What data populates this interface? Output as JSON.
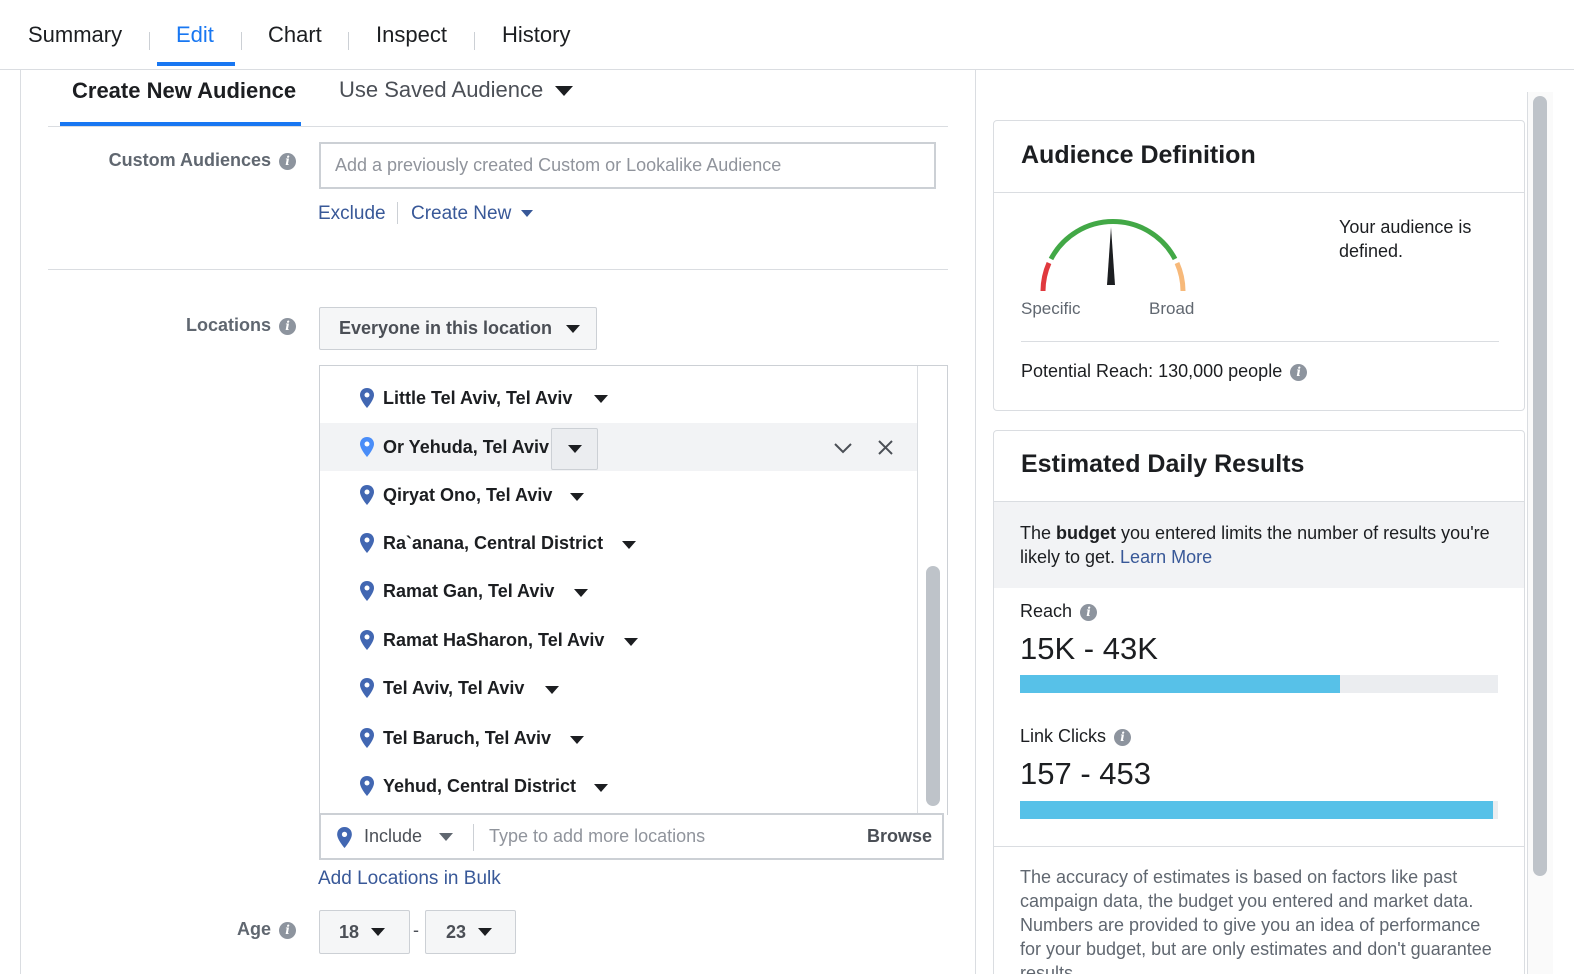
{
  "top_tabs": [
    {
      "label": "Summary",
      "active": false
    },
    {
      "label": "Edit",
      "active": true
    },
    {
      "label": "Chart",
      "active": false
    },
    {
      "label": "Inspect",
      "active": false
    },
    {
      "label": "History",
      "active": false
    }
  ],
  "audience_tabs": {
    "create": "Create New Audience",
    "saved": "Use Saved Audience"
  },
  "custom_audiences": {
    "label": "Custom Audiences",
    "placeholder": "Add a previously created Custom or Lookalike Audience",
    "exclude": "Exclude",
    "create_new": "Create New"
  },
  "locations": {
    "label": "Locations",
    "scope": "Everyone in this location",
    "items": [
      {
        "name": "Little Tel Aviv, Tel Aviv"
      },
      {
        "name": "Or Yehuda, Tel Aviv",
        "hovered": true
      },
      {
        "name": "Qiryat Ono, Tel Aviv"
      },
      {
        "name": "Ra`anana, Central District"
      },
      {
        "name": "Ramat Gan, Tel Aviv"
      },
      {
        "name": "Ramat HaSharon, Tel Aviv"
      },
      {
        "name": "Tel Aviv, Tel Aviv"
      },
      {
        "name": "Tel Baruch, Tel Aviv"
      },
      {
        "name": "Yehud, Central District"
      }
    ],
    "include_label": "Include",
    "input_placeholder": "Type to add more locations",
    "browse": "Browse",
    "bulk_link": "Add Locations in Bulk"
  },
  "age": {
    "label": "Age",
    "min": "18",
    "max": "23",
    "separator": "-"
  },
  "audience_definition": {
    "title": "Audience Definition",
    "status": "Your audience is defined.",
    "specific_label": "Specific",
    "broad_label": "Broad",
    "potential_reach": "Potential Reach: 130,000 people"
  },
  "estimated_results": {
    "title": "Estimated Daily Results",
    "notice_pre": "The ",
    "notice_bold": "budget",
    "notice_post": " you entered limits the number of results you're likely to get. ",
    "learn_more": "Learn More",
    "reach_label": "Reach",
    "reach_value": "15K - 43K",
    "reach_fill_fraction": 0.67,
    "clicks_label": "Link Clicks",
    "clicks_value": "157 - 453",
    "clicks_fill_fraction": 0.99,
    "disclaimer": "The accuracy of estimates is based on factors like past campaign data, the budget you entered and market data. Numbers are provided to give you an idea of performance for your budget, but are only estimates and don't guarantee results."
  },
  "colors": {
    "accent": "#1877f2",
    "link": "#385898",
    "bar": "#57c1e8",
    "gauge_green": "#42a846",
    "gauge_red": "#e0393e",
    "gauge_orange": "#f7b97a"
  }
}
